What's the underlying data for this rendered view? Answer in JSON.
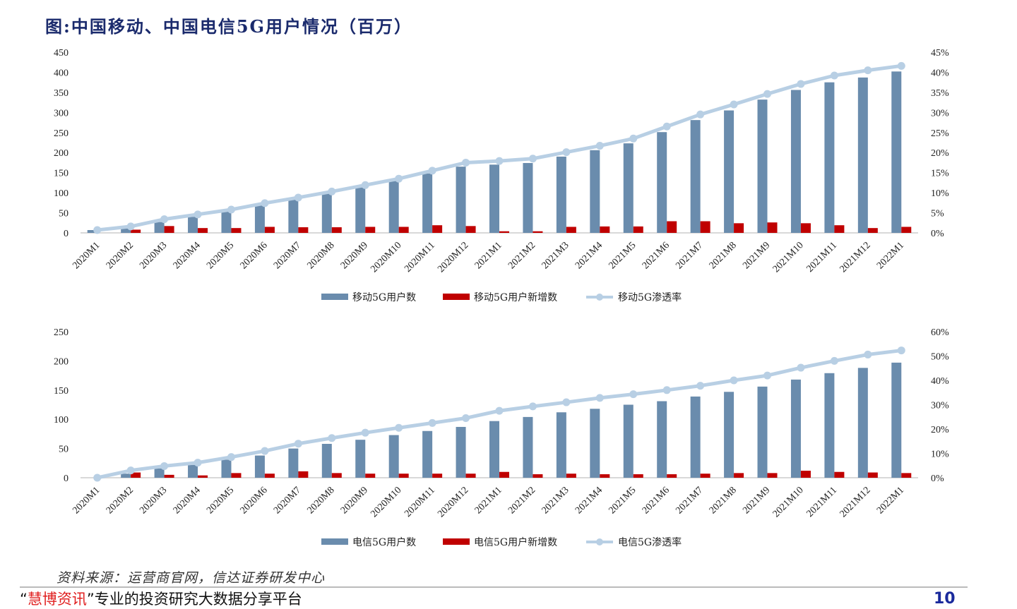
{
  "title": "图:中国移动、中国电信5G用户情况（百万）",
  "source": "资料来源：运营商官网，信达证券研发中心",
  "footer": {
    "quote_open": "“",
    "brand": "慧博资讯",
    "quote_close": "”",
    "tagline": "专业的投资研究大数据分享平台",
    "page": "10"
  },
  "colors": {
    "users": "#6a8cad",
    "new_users": "#c00000",
    "penetration": "#b8cfe4",
    "title": "#1a2a6c"
  },
  "chart_data": [
    {
      "type": "bar+line",
      "categories": [
        "2020M1",
        "2020M2",
        "2020M3",
        "2020M4",
        "2020M5",
        "2020M6",
        "2020M7",
        "2020M8",
        "2020M9",
        "2020M10",
        "2020M11",
        "2020M12",
        "2021M1",
        "2021M2",
        "2021M3",
        "2021M4",
        "2021M5",
        "2021M6",
        "2021M7",
        "2021M8",
        "2021M9",
        "2021M10",
        "2021M11",
        "2021M12",
        "2022M1"
      ],
      "ylim": [
        0,
        450
      ],
      "yticks": [
        "0",
        "50",
        "100",
        "150",
        "200",
        "250",
        "300",
        "350",
        "400",
        "450"
      ],
      "y2lim": [
        0,
        45
      ],
      "y2ticks": [
        "0%",
        "5%",
        "10%",
        "15%",
        "20%",
        "25%",
        "30%",
        "35%",
        "40%",
        "45%"
      ],
      "legend_position": "bottom",
      "grid": false,
      "series": [
        {
          "name": "移动5G用户数",
          "kind": "bar",
          "axis": "left",
          "values": [
            7,
            11,
            27,
            40,
            53,
            68,
            83,
            98,
            113,
            129,
            148,
            165,
            170,
            174,
            190,
            206,
            223,
            251,
            281,
            305,
            332,
            356,
            375,
            387,
            402
          ]
        },
        {
          "name": "移动5G用户新增数",
          "kind": "bar",
          "axis": "left",
          "values": [
            0,
            8,
            17,
            12,
            12,
            15,
            14,
            14,
            15,
            15,
            19,
            17,
            4,
            4,
            15,
            16,
            16,
            29,
            29,
            24,
            26,
            24,
            19,
            12,
            15
          ]
        },
        {
          "name": "移动5G渗透率",
          "kind": "line",
          "axis": "right",
          "values": [
            0.7,
            1.6,
            3.4,
            4.6,
            5.8,
            7.4,
            8.8,
            10.3,
            11.9,
            13.5,
            15.5,
            17.5,
            17.9,
            18.5,
            20.1,
            21.7,
            23.5,
            26.5,
            29.5,
            32.0,
            34.6,
            37.1,
            39.2,
            40.5,
            41.6
          ]
        }
      ]
    },
    {
      "type": "bar+line",
      "categories": [
        "2020M1",
        "2020M2",
        "2020M3",
        "2020M4",
        "2020M5",
        "2020M6",
        "2020M7",
        "2020M8",
        "2020M9",
        "2020M10",
        "2020M11",
        "2020M12",
        "2021M1",
        "2021M2",
        "2021M3",
        "2021M4",
        "2021M5",
        "2021M6",
        "2021M7",
        "2021M8",
        "2021M9",
        "2021M10",
        "2021M11",
        "2021M12",
        "2022M1"
      ],
      "ylim": [
        0,
        250
      ],
      "yticks": [
        "0",
        "50",
        "100",
        "150",
        "200",
        "250"
      ],
      "y2lim": [
        0,
        60
      ],
      "y2ticks": [
        "0%",
        "10%",
        "20%",
        "30%",
        "40%",
        "50%",
        "60%"
      ],
      "legend_position": "bottom",
      "grid": false,
      "series": [
        {
          "name": "电信5G用户数",
          "kind": "bar",
          "axis": "left",
          "values": [
            0,
            7,
            16,
            22,
            31,
            38,
            50,
            58,
            65,
            73,
            80,
            87,
            97,
            104,
            112,
            118,
            125,
            131,
            139,
            147,
            156,
            168,
            179,
            188,
            197
          ]
        },
        {
          "name": "电信5G用户新增数",
          "kind": "bar",
          "axis": "left",
          "values": [
            0,
            9,
            5,
            4,
            8,
            7,
            11,
            8,
            7,
            7,
            7,
            7,
            10,
            6,
            7,
            6,
            6,
            6,
            7,
            8,
            8,
            12,
            10,
            9,
            8
          ]
        },
        {
          "name": "电信5G渗透率",
          "kind": "line",
          "axis": "right",
          "values": [
            0,
            3.0,
            4.8,
            6.2,
            8.5,
            11.0,
            14.0,
            16.3,
            18.5,
            20.5,
            22.5,
            24.5,
            27.5,
            29.3,
            31.0,
            32.8,
            34.3,
            36.0,
            37.8,
            40.0,
            42.0,
            45.2,
            48.0,
            50.6,
            52.3
          ]
        }
      ]
    }
  ]
}
